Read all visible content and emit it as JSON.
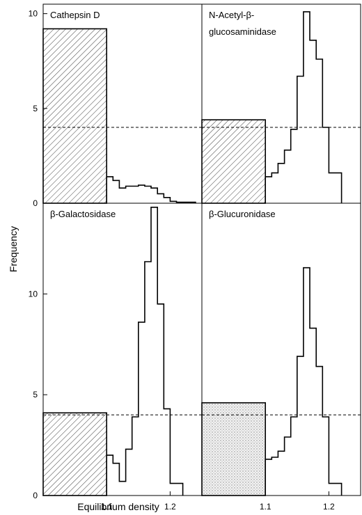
{
  "chart_data": {
    "type": "histogram-grid",
    "xlabel": "Equilibrium density",
    "ylabel": "Frequency",
    "reference_line": {
      "value": 4,
      "style": "dashed"
    },
    "panels": [
      {
        "title_lines": [
          "Cathepsin D"
        ],
        "x_ticks": [
          "1.1"
        ],
        "y_ticks": [
          "0",
          "5",
          "10"
        ],
        "ylim": [
          0,
          10.5
        ],
        "bar_first": {
          "x": [
            1.0,
            1.1
          ],
          "value": 9.2,
          "pattern": "hatch"
        },
        "histogram": {
          "edges": [
            1.1,
            1.11,
            1.12,
            1.13,
            1.14,
            1.15,
            1.16,
            1.17,
            1.18,
            1.19,
            1.2,
            1.21,
            1.22,
            1.23,
            1.24
          ],
          "values": [
            1.4,
            1.2,
            0.8,
            0.9,
            0.9,
            0.95,
            0.9,
            0.8,
            0.5,
            0.3,
            0.1,
            0.05,
            0.05,
            0.05
          ]
        }
      },
      {
        "title_lines": [
          "N-Acetyl-β-",
          "glucosaminidase"
        ],
        "x_ticks": [],
        "y_ticks": [],
        "ylim": [
          0,
          10.5
        ],
        "bar_first": {
          "x": [
            1.0,
            1.1
          ],
          "value": 4.4,
          "pattern": "hatch"
        },
        "histogram": {
          "edges": [
            1.1,
            1.11,
            1.12,
            1.13,
            1.14,
            1.15,
            1.16,
            1.17,
            1.18,
            1.19,
            1.2,
            1.22
          ],
          "values": [
            1.4,
            1.6,
            2.1,
            2.8,
            3.9,
            6.7,
            10.1,
            8.6,
            7.6,
            4.0,
            1.6
          ]
        }
      },
      {
        "title_lines": [
          "β-Galactosidase"
        ],
        "x_ticks": [
          "1.1",
          "1.2"
        ],
        "y_ticks": [
          "0",
          "5",
          "10"
        ],
        "ylim": [
          0,
          14.5
        ],
        "bar_first": {
          "x": [
            1.0,
            1.1
          ],
          "value": 4.1,
          "pattern": "hatch"
        },
        "histogram": {
          "edges": [
            1.1,
            1.11,
            1.12,
            1.13,
            1.14,
            1.15,
            1.16,
            1.17,
            1.18,
            1.19,
            1.2,
            1.22
          ],
          "values": [
            2.0,
            1.6,
            0.7,
            2.3,
            3.9,
            8.6,
            11.6,
            14.3,
            9.5,
            4.3,
            0.6
          ]
        }
      },
      {
        "title_lines": [
          "β-Glucuronidase"
        ],
        "x_ticks": [
          "1.1",
          "1.2"
        ],
        "y_ticks": [],
        "ylim": [
          0,
          14.5
        ],
        "bar_first": {
          "x": [
            1.0,
            1.1
          ],
          "value": 4.6,
          "pattern": "stipple"
        },
        "histogram": {
          "edges": [
            1.1,
            1.11,
            1.12,
            1.13,
            1.14,
            1.15,
            1.16,
            1.17,
            1.18,
            1.19,
            1.2,
            1.22
          ],
          "values": [
            1.8,
            1.9,
            2.2,
            2.9,
            3.9,
            6.9,
            11.3,
            8.3,
            6.4,
            3.9,
            0.6
          ]
        }
      }
    ]
  }
}
